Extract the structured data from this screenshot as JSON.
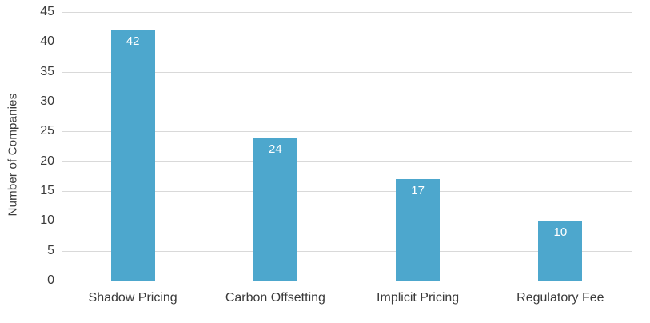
{
  "chart_data": {
    "type": "bar",
    "title": "",
    "categories": [
      "Shadow Pricing",
      "Carbon Offsetting",
      "Implicit Pricing",
      "Regulatory Fee"
    ],
    "values": [
      42,
      24,
      17,
      10
    ],
    "value_labels": [
      "42",
      "24",
      "17",
      "10"
    ],
    "xlabel": "",
    "ylabel": "Number of Companies",
    "ylim": [
      0,
      45
    ],
    "ytick_step": 5,
    "ytick_labels": [
      "0",
      "5",
      "10",
      "15",
      "20",
      "25",
      "30",
      "35",
      "40",
      "45"
    ],
    "grid": true,
    "legend_position": "none",
    "colors": {
      "bar": "#4DA7CD",
      "value_label": "#FFFFFF",
      "gridline": "#D9D9D9",
      "axis_text": "#3A3A3A",
      "background": "#FFFFFF"
    }
  }
}
